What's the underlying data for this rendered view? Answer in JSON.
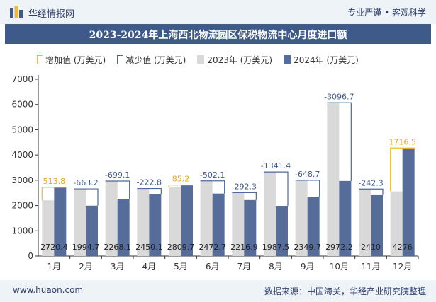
{
  "header": {
    "brand": "华经情报网",
    "tagline": "专业严谨 • 客观科学",
    "title": "2023-2024年上海西北物流园区保税物流中心月度进口额"
  },
  "legend": {
    "increase": "增加值 (万美元)",
    "decrease": "减少值 (万美元)",
    "y2023": "2023年 (万美元)",
    "y2024": "2024年 (万美元)"
  },
  "footer": {
    "site": "www.huaon.com",
    "source": "数据来源：中国海关，华经产业研究院整理"
  },
  "colors": {
    "bar2023": "#d9d9d9",
    "bar2024": "#576d99",
    "increase": "#f5b82e",
    "decrease": "#4c6a9c",
    "brand": "#3d5a8a"
  },
  "chart_data": {
    "type": "bar",
    "title": "2023-2024年上海西北物流园区保税物流中心月度进口额",
    "categories": [
      "1月",
      "2月",
      "3月",
      "4月",
      "5月",
      "6月",
      "7月",
      "8月",
      "9月",
      "10月",
      "11月",
      "12月"
    ],
    "series": [
      {
        "name": "2023年 (万美元)",
        "values": [
          2206.6,
          2657.9,
          2967.2,
          2672.9,
          2724.5,
          2974.8,
          2509.2,
          3328.9,
          2998.4,
          6069.0,
          2652.3,
          2559.5
        ]
      },
      {
        "name": "2024年 (万美元)",
        "values": [
          2720.4,
          1994.7,
          2268.1,
          2450.1,
          2809.7,
          2472.7,
          2216.9,
          1987.5,
          2349.7,
          2972.2,
          2410,
          4276
        ]
      }
    ],
    "change_labels": [
      "513.8",
      "-663.2",
      "-699.1",
      "-222.8",
      "85.2",
      "-502.1",
      "-292.3",
      "-1341.4",
      "-648.7",
      "-3096.7",
      "-242.3",
      "1716.5"
    ],
    "value_labels": [
      "2720.4",
      "1994.7",
      "2268.1",
      "2450.1",
      "2809.7",
      "2472.7",
      "2216.9",
      "1987.5",
      "2349.7",
      "2972.2",
      "2410",
      "4276"
    ],
    "y_ticks": [
      "0",
      "1000",
      "2000",
      "3000",
      "4000",
      "5000",
      "6000",
      "7000"
    ],
    "ylim": [
      0,
      7000
    ],
    "xlabel": "",
    "ylabel": ""
  }
}
